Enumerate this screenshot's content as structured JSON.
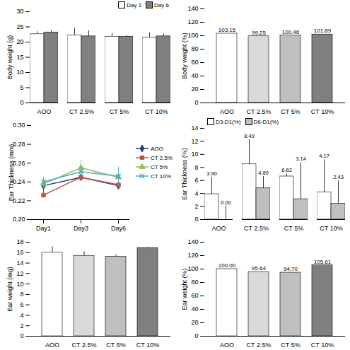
{
  "chart_data": [
    {
      "type": "bar",
      "ylabel": "Body weight (g)",
      "categories": [
        "AOO",
        "CT 2.5%",
        "CT 5%",
        "CT 10%"
      ],
      "ylim": [
        0,
        30
      ],
      "yticks": [
        0,
        5,
        10,
        15,
        20,
        25,
        30
      ],
      "legend": "top-right",
      "series": [
        {
          "name": "Day 1",
          "color": "#ffffff",
          "values": [
            22.6,
            22.2,
            21.8,
            21.5
          ],
          "errors": [
            0.8,
            2.4,
            1.0,
            1.6
          ]
        },
        {
          "name": "Day 6",
          "color": "#808080",
          "values": [
            23.2,
            21.9,
            21.8,
            21.9
          ],
          "errors": [
            0.7,
            1.8,
            0.4,
            0.8
          ]
        }
      ]
    },
    {
      "type": "bar",
      "ylabel": "Body weight (%)",
      "categories": [
        "AOO",
        "CT 2.5%",
        "CT 5%",
        "CT 10%"
      ],
      "values": [
        103.15,
        99.25,
        100.46,
        101.89
      ],
      "colors": [
        "#ffffff",
        "#d9d9d9",
        "#bfbfbf",
        "#7f7f7f"
      ],
      "ylim": [
        0,
        140
      ],
      "yticks": [
        0,
        20,
        40,
        60,
        80,
        100,
        120,
        140
      ],
      "data_labels": true
    },
    {
      "type": "line",
      "ylabel": "Ear Thickness (mm)",
      "categories": [
        "Day1",
        "Day3",
        "Day6"
      ],
      "ylim": [
        0.2,
        0.3
      ],
      "yticks": [
        {
          "value": 0.2,
          "label": "0.20"
        },
        {
          "value": 0.22,
          "label": "0.22"
        },
        {
          "value": 0.24,
          "label": "0.24"
        },
        {
          "value": 0.26,
          "label": "0.26"
        },
        {
          "value": 0.28,
          "label": "0.28"
        },
        {
          "value": 0.3,
          "label": "0.30"
        }
      ],
      "legend": "right",
      "series": [
        {
          "name": "AOO",
          "color": "#1f3d7a",
          "marker": "diamond",
          "values": [
            0.236,
            0.245,
            0.236
          ],
          "errors": [
            0.008,
            0.004,
            0.003
          ]
        },
        {
          "name": "CT 2.5%",
          "color": "#c0504d",
          "marker": "square",
          "values": [
            0.226,
            0.245,
            0.237
          ],
          "errors": [
            0.003,
            0.004,
            0.004
          ]
        },
        {
          "name": "CT 5%",
          "color": "#9bbb59",
          "marker": "triangle",
          "values": [
            0.238,
            0.255,
            0.245
          ],
          "errors": [
            0.005,
            0.008,
            0.008
          ]
        },
        {
          "name": "CT 10%",
          "color": "#4bacc6",
          "marker": "x",
          "values": [
            0.24,
            0.251,
            0.246
          ],
          "errors": [
            0.005,
            0.006,
            0.01
          ]
        }
      ]
    },
    {
      "type": "bar",
      "ylabel": "Ear Thickness (%)",
      "categories": [
        "AOO",
        "CT 2.5%",
        "CT 5%",
        "CT 10%"
      ],
      "ylim": [
        0,
        14
      ],
      "yticks": [
        0,
        2,
        4,
        6,
        8,
        10,
        12,
        14
      ],
      "legend": "top-left",
      "data_labels": true,
      "series": [
        {
          "name": "D3-D1(%)",
          "color": "#ffffff",
          "values": [
            3.9,
            8.49,
            6.62,
            4.17
          ],
          "value_labels": [
            "3.90",
            "8.49",
            "6.62",
            "4.17"
          ],
          "errors": [
            2.6,
            3.8,
            0.4,
            5.0
          ]
        },
        {
          "name": "D6-D1(%)",
          "color": "#bfbfbf",
          "values": [
            0.0,
            4.8,
            3.14,
            2.43
          ],
          "value_labels": [
            "0.00",
            "4.80",
            "3.14",
            "2.43"
          ],
          "errors": [
            2.1,
            1.8,
            5.6,
            3.5
          ]
        }
      ]
    },
    {
      "type": "bar",
      "ylabel": "Ear weight (mg)",
      "categories": [
        "AOO",
        "CT 2.5%",
        "CT 5%",
        "CT 10%"
      ],
      "values": [
        16.0,
        15.4,
        15.2,
        16.9
      ],
      "errors": [
        1.1,
        0.8,
        0.4,
        0.1
      ],
      "colors": [
        "#ffffff",
        "#d9d9d9",
        "#bfbfbf",
        "#7f7f7f"
      ],
      "ylim": [
        0,
        18
      ],
      "yticks": [
        0,
        2,
        4,
        6,
        8,
        10,
        12,
        14,
        16,
        18
      ]
    },
    {
      "type": "bar",
      "ylabel": "Ear weight (%)",
      "categories": [
        "AOO",
        "CT 2.5%",
        "CT 5%",
        "CT 10%"
      ],
      "values": [
        100.0,
        95.64,
        94.7,
        105.61
      ],
      "value_labels": [
        "100.00",
        "95.64",
        "94.70",
        "105.61"
      ],
      "colors": [
        "#ffffff",
        "#d9d9d9",
        "#bfbfbf",
        "#7f7f7f"
      ],
      "ylim": [
        0,
        140
      ],
      "yticks": [
        0,
        20,
        40,
        60,
        80,
        100,
        120,
        140
      ],
      "data_labels": true
    }
  ]
}
